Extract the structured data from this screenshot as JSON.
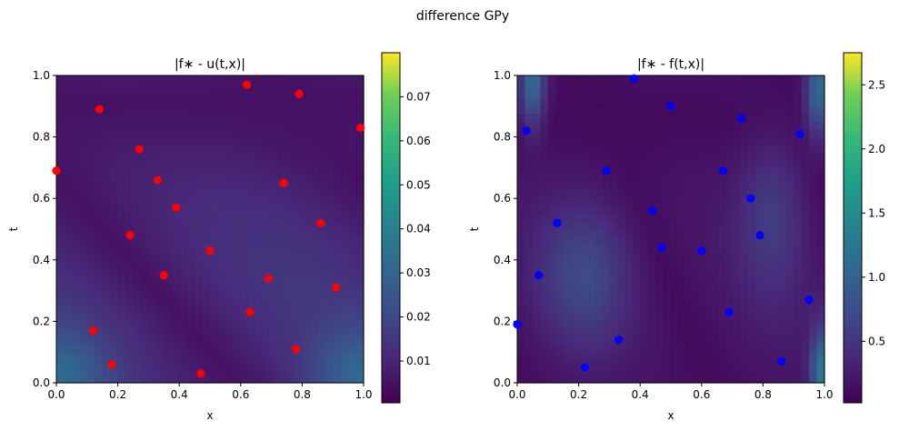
{
  "figure": {
    "suptitle": "difference GPy"
  },
  "chart_data": [
    {
      "type": "heatmap",
      "title": "|f∗ - u(t,x)|",
      "xlabel": "x",
      "ylabel": "t",
      "xlim": [
        0,
        1
      ],
      "ylim": [
        0,
        1
      ],
      "xticks": [
        "0.0",
        "0.2",
        "0.4",
        "0.6",
        "0.8",
        "1.0"
      ],
      "yticks": [
        "0.0",
        "0.2",
        "0.4",
        "0.6",
        "0.8",
        "1.0"
      ],
      "colormap": "viridis",
      "colorbar": {
        "range": [
          0.0005,
          0.08
        ],
        "ticks": [
          0.01,
          0.02,
          0.03,
          0.04,
          0.05,
          0.06,
          0.07
        ],
        "tick_labels": [
          "0.01",
          "0.02",
          "0.03",
          "0.04",
          "0.05",
          "0.06",
          "0.07"
        ]
      },
      "marker_color": "#ff0000",
      "points": [
        {
          "x": 0.0,
          "t": 0.69
        },
        {
          "x": 0.14,
          "t": 0.89
        },
        {
          "x": 0.27,
          "t": 0.76
        },
        {
          "x": 0.33,
          "t": 0.66
        },
        {
          "x": 0.39,
          "t": 0.57
        },
        {
          "x": 0.24,
          "t": 0.48
        },
        {
          "x": 0.35,
          "t": 0.35
        },
        {
          "x": 0.5,
          "t": 0.43
        },
        {
          "x": 0.62,
          "t": 0.97
        },
        {
          "x": 0.79,
          "t": 0.94
        },
        {
          "x": 0.99,
          "t": 0.83
        },
        {
          "x": 0.74,
          "t": 0.65
        },
        {
          "x": 0.86,
          "t": 0.52
        },
        {
          "x": 0.69,
          "t": 0.34
        },
        {
          "x": 0.91,
          "t": 0.31
        },
        {
          "x": 0.63,
          "t": 0.23
        },
        {
          "x": 0.12,
          "t": 0.17
        },
        {
          "x": 0.18,
          "t": 0.06
        },
        {
          "x": 0.47,
          "t": 0.03
        },
        {
          "x": 0.78,
          "t": 0.11
        }
      ]
    },
    {
      "type": "heatmap",
      "title": "|f∗ - f(t,x)|",
      "xlabel": "x",
      "ylabel": "t",
      "xlim": [
        0,
        1
      ],
      "ylim": [
        0,
        1
      ],
      "xticks": [
        "0.0",
        "0.2",
        "0.4",
        "0.6",
        "0.8",
        "1.0"
      ],
      "yticks": [
        "0.0",
        "0.2",
        "0.4",
        "0.6",
        "0.8",
        "1.0"
      ],
      "colormap": "viridis",
      "colorbar": {
        "range": [
          0.02,
          2.75
        ],
        "ticks": [
          0.5,
          1.0,
          1.5,
          2.0,
          2.5
        ],
        "tick_labels": [
          "0.5",
          "1.0",
          "1.5",
          "2.0",
          "2.5"
        ]
      },
      "marker_color": "#0000ff",
      "points": [
        {
          "x": 0.03,
          "t": 0.82
        },
        {
          "x": 0.38,
          "t": 0.99
        },
        {
          "x": 0.5,
          "t": 0.9
        },
        {
          "x": 0.73,
          "t": 0.86
        },
        {
          "x": 0.92,
          "t": 0.81
        },
        {
          "x": 0.29,
          "t": 0.69
        },
        {
          "x": 0.67,
          "t": 0.69
        },
        {
          "x": 0.76,
          "t": 0.6
        },
        {
          "x": 0.44,
          "t": 0.56
        },
        {
          "x": 0.13,
          "t": 0.52
        },
        {
          "x": 0.79,
          "t": 0.48
        },
        {
          "x": 0.47,
          "t": 0.44
        },
        {
          "x": 0.6,
          "t": 0.43
        },
        {
          "x": 0.07,
          "t": 0.35
        },
        {
          "x": 0.95,
          "t": 0.27
        },
        {
          "x": 0.69,
          "t": 0.23
        },
        {
          "x": 0.0,
          "t": 0.19
        },
        {
          "x": 0.33,
          "t": 0.14
        },
        {
          "x": 0.86,
          "t": 0.07
        },
        {
          "x": 0.22,
          "t": 0.05
        }
      ]
    }
  ]
}
